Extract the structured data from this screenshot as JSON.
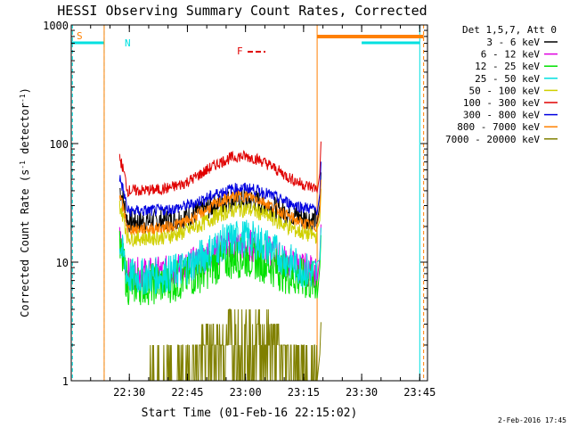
{
  "chart_data": {
    "type": "line",
    "title": "HESSI Observing Summary Count Rates, Corrected",
    "xlabel": "Start Time (01-Feb-16 22:15:02)",
    "ylabel_main": "Corrected Count Rate (s",
    "ylabel_sup1": "-1",
    "ylabel_mid": " detector",
    "ylabel_sup2": "-1",
    "ylabel_end": ")",
    "y_scale": "log",
    "ylim": [
      1,
      1000
    ],
    "xlim_minutes": [
      0,
      92
    ],
    "x_ticks": [
      {
        "minute": 15,
        "label": "22:30"
      },
      {
        "minute": 30,
        "label": "22:45"
      },
      {
        "minute": 45,
        "label": "23:00"
      },
      {
        "minute": 60,
        "label": "23:15"
      },
      {
        "minute": 75,
        "label": "23:30"
      },
      {
        "minute": 90,
        "label": "23:45"
      }
    ],
    "y_ticks": [
      {
        "value": 1,
        "label": "1"
      },
      {
        "value": 10,
        "label": "10"
      },
      {
        "value": 100,
        "label": "100"
      },
      {
        "value": 1000,
        "label": "1000"
      }
    ],
    "legend_title": "Det 1,5,7, Att 0",
    "legend_placement": "right",
    "series": [
      {
        "name": "3 - 6 keV",
        "color": "#000000",
        "base": 22,
        "peak": 34,
        "noise": 0.1
      },
      {
        "name": "6 - 12 keV",
        "color": "#e000e0",
        "base": 8,
        "peak": 14,
        "noise": 0.14
      },
      {
        "name": "12 - 25 keV",
        "color": "#00e000",
        "base": 6.5,
        "peak": 11,
        "noise": 0.18
      },
      {
        "name": "25 - 50 keV",
        "color": "#00e0e0",
        "base": 7.5,
        "peak": 16,
        "noise": 0.16
      },
      {
        "name": "50 - 100 keV",
        "color": "#d0d000",
        "base": 16,
        "peak": 28,
        "noise": 0.07
      },
      {
        "name": "100 - 300 keV",
        "color": "#e00000",
        "base": 40,
        "peak": 78,
        "noise": 0.05
      },
      {
        "name": "300 - 800 keV",
        "color": "#0000e0",
        "base": 27,
        "peak": 42,
        "noise": 0.05
      },
      {
        "name": "800 - 7000 keV",
        "color": "#ff8000",
        "base": 19,
        "peak": 36,
        "noise": 0.05
      },
      {
        "name": "7000 - 20000 keV",
        "color": "#808000",
        "base": 1.2,
        "peak": 4,
        "noise": 0.0
      }
    ],
    "data_window_minutes": [
      12.5,
      63.5
    ],
    "flare_spike_minute": 64.5,
    "annotations": {
      "saa_label": "S",
      "night_label": "N",
      "flare_label": "F",
      "saa_color": "#ff8000",
      "night_color": "#00e0e0",
      "flare_color": "#e00000"
    },
    "background_periods": {
      "night_minutes": [
        [
          0,
          8.5
        ],
        [
          75,
          90
        ]
      ],
      "saa_minutes": [
        [
          63.5,
          91
        ]
      ]
    }
  },
  "timestamp": "2-Feb-2016 17:45"
}
